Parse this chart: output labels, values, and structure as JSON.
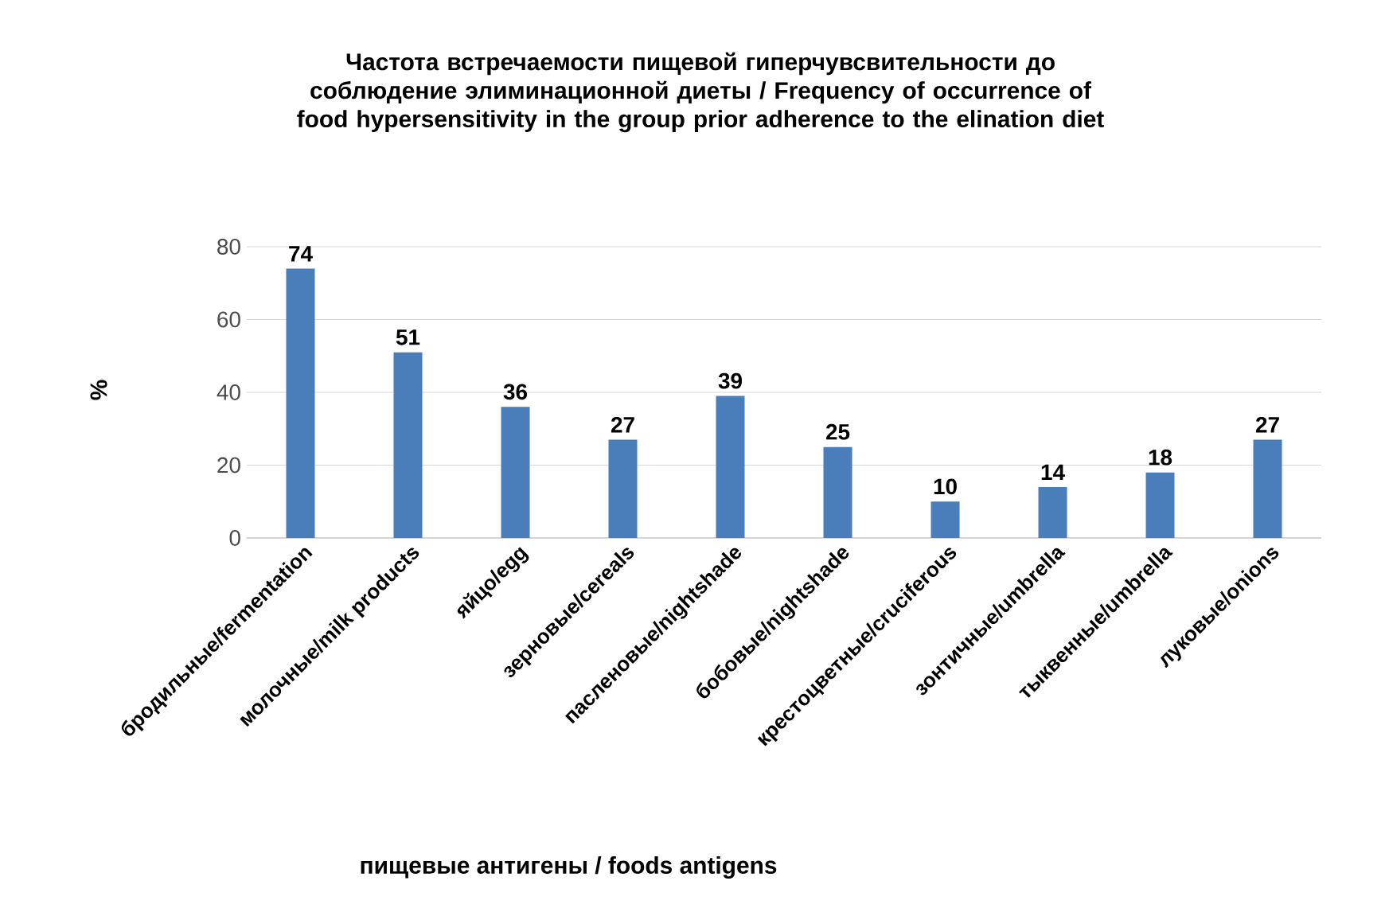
{
  "chart_data": {
    "type": "bar",
    "title": "Частота встречаемости пищевой гиперчувсвительности до соблюдение элиминационной диеты / Frequency of occurrence of food hypersensitivity in the group prior adherence to the elination diet",
    "xlabel": "пищевые антигены / foods antigens",
    "ylabel": "%",
    "categories": [
      "бродильные/fermentation",
      "молочные/milk products",
      "яйцо/egg",
      "зерновые/cereals",
      "пасленовые/nightshade",
      "бобовые/nightshade",
      "крестоцветные/cruciferous",
      "зонтичные/umbrella",
      "тыквенные/umbrella",
      "луковые/onions"
    ],
    "values": [
      74,
      51,
      36,
      27,
      39,
      25,
      10,
      14,
      18,
      27
    ],
    "color": "#4a7ebb",
    "ylim": [
      0,
      80
    ],
    "yticks": [
      0,
      20,
      40,
      60,
      80
    ],
    "grid": "y",
    "data_labels": true
  }
}
